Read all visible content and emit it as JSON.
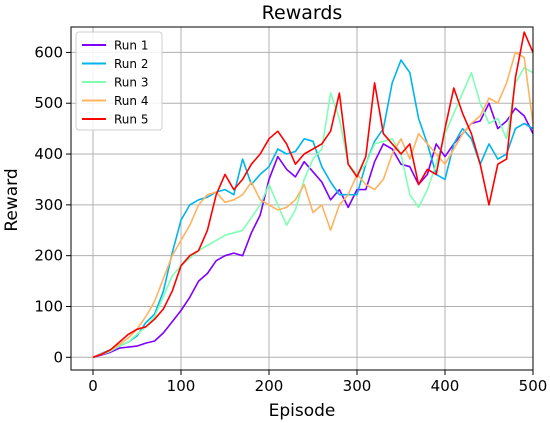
{
  "chart_data": {
    "type": "line",
    "title": "Rewards",
    "xlabel": "Episode",
    "ylabel": "Reward",
    "xlim": [
      -25,
      500
    ],
    "ylim": [
      -25,
      650
    ],
    "xticks": [
      0,
      100,
      200,
      300,
      400,
      500
    ],
    "yticks": [
      0,
      100,
      200,
      300,
      400,
      500,
      600
    ],
    "grid": true,
    "legend_position": "top-left",
    "x": [
      0,
      10,
      20,
      30,
      40,
      50,
      60,
      70,
      80,
      90,
      100,
      110,
      120,
      130,
      140,
      150,
      160,
      170,
      180,
      190,
      200,
      210,
      220,
      230,
      240,
      250,
      260,
      270,
      280,
      290,
      300,
      310,
      320,
      330,
      340,
      350,
      360,
      370,
      380,
      390,
      400,
      410,
      420,
      430,
      440,
      450,
      460,
      470,
      480,
      490,
      500
    ],
    "series": [
      {
        "name": "Run 1",
        "color": "#8000ff",
        "values": [
          0,
          5,
          10,
          18,
          20,
          22,
          28,
          32,
          48,
          70,
          92,
          118,
          150,
          165,
          190,
          200,
          205,
          200,
          245,
          280,
          350,
          395,
          370,
          355,
          385,
          365,
          345,
          310,
          330,
          295,
          330,
          330,
          385,
          420,
          410,
          380,
          375,
          340,
          360,
          420,
          395,
          420,
          440,
          460,
          465,
          500,
          450,
          465,
          490,
          475,
          440
        ]
      },
      {
        "name": "Run 2",
        "color": "#00b5eb",
        "values": [
          0,
          8,
          15,
          22,
          30,
          42,
          68,
          85,
          130,
          205,
          270,
          300,
          310,
          315,
          325,
          330,
          320,
          390,
          340,
          360,
          375,
          410,
          400,
          405,
          430,
          425,
          375,
          345,
          320,
          320,
          320,
          380,
          425,
          450,
          540,
          585,
          560,
          470,
          420,
          360,
          350,
          420,
          450,
          430,
          380,
          420,
          390,
          400,
          450,
          460,
          450
        ]
      },
      {
        "name": "Run 3",
        "color": "#80ffb4",
        "values": [
          0,
          6,
          12,
          22,
          30,
          45,
          60,
          80,
          120,
          160,
          180,
          195,
          210,
          220,
          230,
          240,
          245,
          250,
          275,
          300,
          340,
          300,
          260,
          290,
          350,
          390,
          410,
          520,
          470,
          380,
          360,
          380,
          420,
          425,
          430,
          400,
          320,
          295,
          330,
          380,
          440,
          480,
          520,
          560,
          500,
          460,
          470,
          430,
          540,
          570,
          560
        ]
      },
      {
        "name": "Run 4",
        "color": "#ffb360",
        "values": [
          0,
          7,
          14,
          25,
          38,
          55,
          80,
          110,
          155,
          200,
          230,
          260,
          300,
          320,
          325,
          305,
          310,
          320,
          345,
          310,
          300,
          290,
          295,
          310,
          340,
          285,
          300,
          250,
          300,
          320,
          360,
          340,
          330,
          350,
          400,
          430,
          390,
          440,
          420,
          400,
          380,
          410,
          440,
          460,
          475,
          510,
          500,
          540,
          600,
          590,
          460
        ]
      },
      {
        "name": "Run 5",
        "color": "#ff0000",
        "values": [
          0,
          6,
          15,
          30,
          45,
          55,
          60,
          75,
          95,
          130,
          180,
          200,
          210,
          250,
          320,
          360,
          330,
          350,
          380,
          400,
          430,
          445,
          420,
          380,
          400,
          410,
          420,
          445,
          520,
          380,
          355,
          395,
          540,
          440,
          420,
          400,
          420,
          340,
          370,
          360,
          450,
          530,
          480,
          440,
          380,
          300,
          380,
          390,
          550,
          640,
          600
        ]
      }
    ]
  }
}
